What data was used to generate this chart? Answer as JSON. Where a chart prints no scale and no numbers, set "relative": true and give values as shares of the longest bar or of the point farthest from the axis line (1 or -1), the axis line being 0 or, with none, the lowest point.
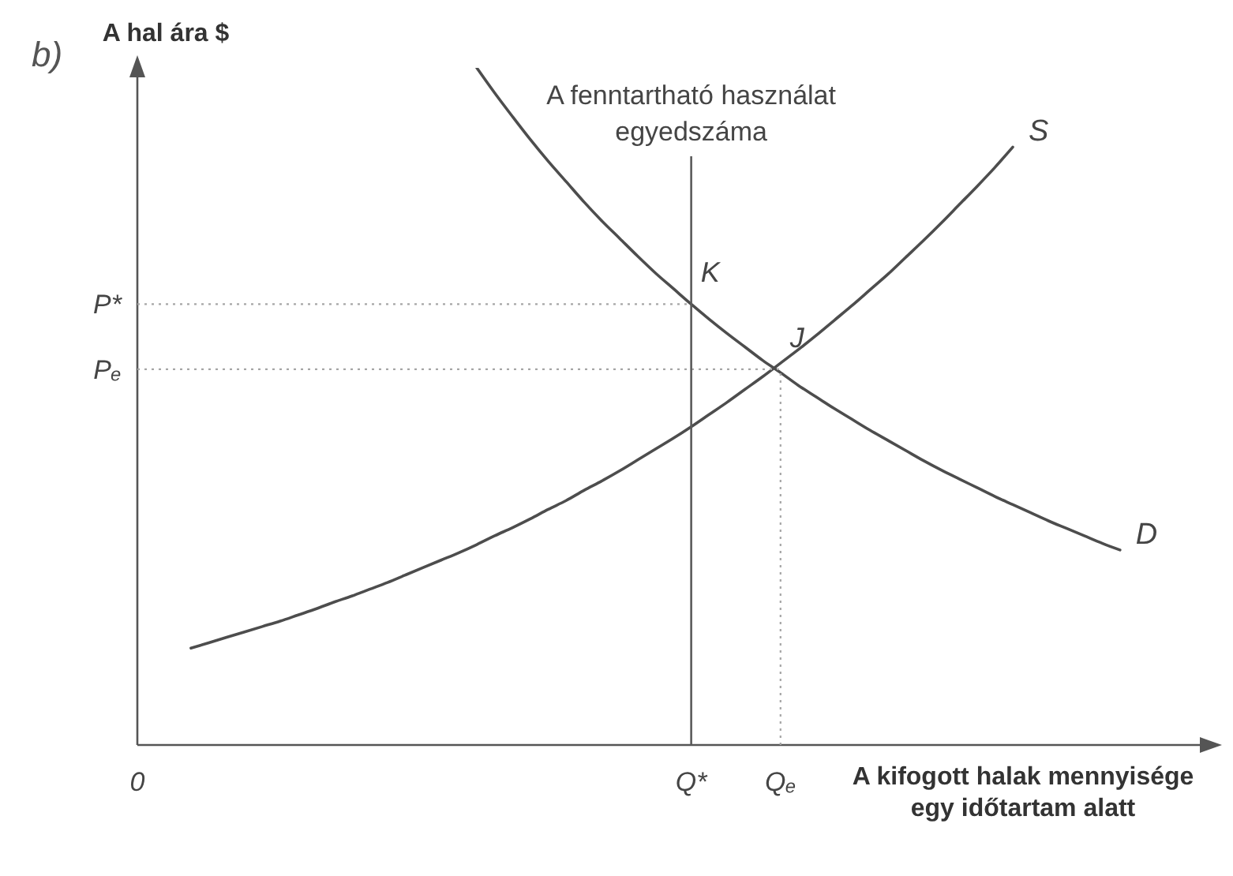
{
  "chart_data": {
    "type": "line",
    "title": "b)",
    "ylabel": "A hal ára $",
    "xlabel": "A kifogott halak mennyisége egy időtartam alatt",
    "relative": true,
    "categories": [
      "0",
      null,
      null,
      null,
      null,
      null,
      null,
      null,
      null,
      null,
      null,
      null,
      null,
      null,
      null,
      null,
      null,
      null,
      null,
      null,
      null,
      null,
      null,
      null,
      null,
      null,
      null,
      null,
      null,
      null,
      null,
      "Q*",
      null,
      null,
      null,
      null,
      "Qₑ",
      null,
      null,
      null,
      null,
      null,
      null,
      null,
      null,
      null,
      null,
      null,
      null,
      null,
      null,
      null,
      null,
      null,
      null,
      null,
      null,
      null,
      null,
      null,
      null
    ],
    "series": [
      {
        "name": "S",
        "color": "#4d4d4d",
        "values": [
          null,
          null,
          null,
          0.143,
          0.151,
          0.159,
          0.167,
          0.175,
          0.183,
          0.192,
          0.201,
          0.211,
          0.22,
          0.23,
          0.24,
          0.251,
          0.262,
          0.273,
          0.284,
          0.296,
          0.309,
          0.321,
          0.334,
          0.348,
          0.361,
          0.376,
          0.39,
          0.405,
          0.421,
          0.437,
          0.453,
          0.47,
          0.488,
          0.506,
          0.525,
          0.544,
          0.564,
          0.584,
          0.605,
          0.627,
          0.649,
          0.672,
          0.695,
          0.72,
          0.745,
          0.771,
          0.798,
          0.825,
          0.853,
          0.883,
          null,
          null,
          null,
          null,
          null,
          null,
          null,
          null,
          null,
          null,
          null
        ]
      },
      {
        "name": "D",
        "color": "#4d4d4d",
        "values": [
          null,
          null,
          null,
          null,
          null,
          null,
          null,
          null,
          null,
          null,
          null,
          null,
          null,
          null,
          null,
          null,
          null,
          null,
          null,
          1,
          0.963,
          0.928,
          0.894,
          0.862,
          0.832,
          0.802,
          0.774,
          0.748,
          0.722,
          0.697,
          0.674,
          0.651,
          0.629,
          0.608,
          0.588,
          0.568,
          0.55,
          0.531,
          0.514,
          0.497,
          0.481,
          0.465,
          0.45,
          0.435,
          0.42,
          0.406,
          0.393,
          0.38,
          0.367,
          0.355,
          0.343,
          0.331,
          0.32,
          0.309,
          0.298,
          0.288,
          null,
          null,
          null,
          null,
          null
        ]
      }
    ],
    "ref_lines": [
      {
        "axis": "x",
        "value": "Q*",
        "label": "A fenntartható használat egyedszáma",
        "color": "#5a5a5a",
        "line_style": "solid"
      },
      {
        "axis": "x",
        "value": "Qₑ",
        "color": "#a6a6a6",
        "line_style": "dotted"
      },
      {
        "axis": "y",
        "value": 0.651,
        "label": "P*",
        "color": "#a6a6a6",
        "line_style": "dotted"
      },
      {
        "axis": "y",
        "value": 0.555,
        "label": "Pₑ",
        "color": "#a6a6a6",
        "line_style": "dotted"
      }
    ],
    "annotations": [
      {
        "text": "K",
        "x": "Q*",
        "y": 0.651
      },
      {
        "text": "J",
        "x": "Qₑ",
        "y": 0.555
      }
    ]
  }
}
